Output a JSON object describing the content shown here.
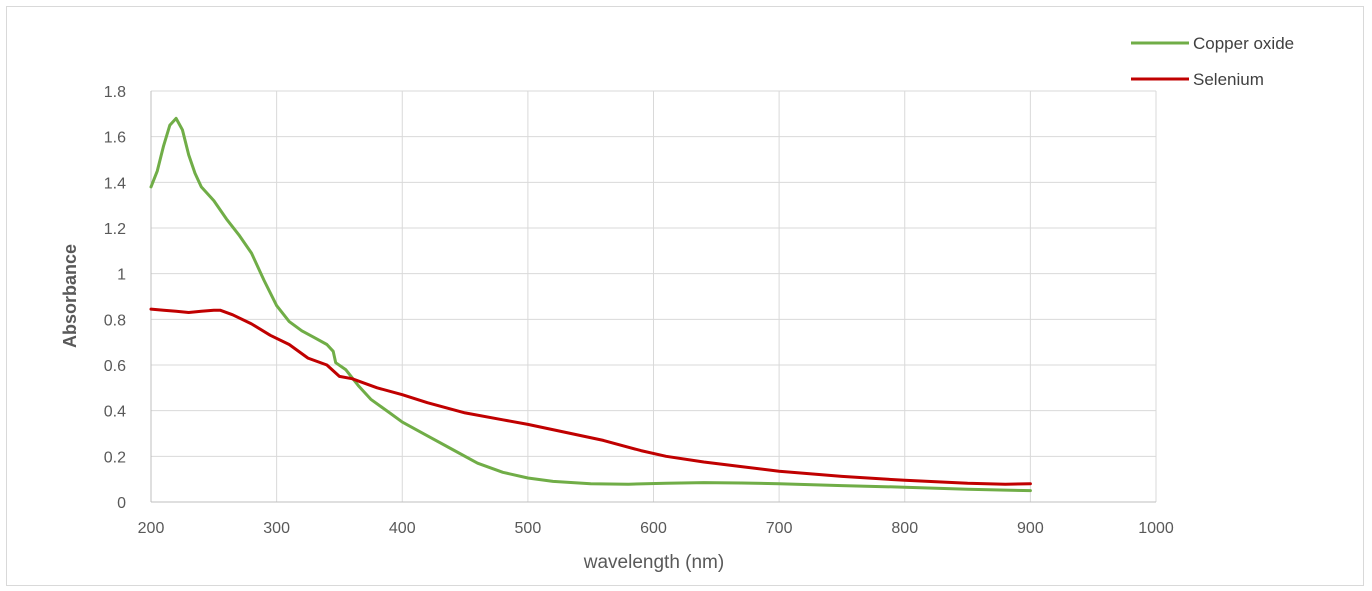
{
  "chart_data": {
    "type": "line",
    "title": "",
    "xlabel": "wavelength (nm)",
    "ylabel": "Absorbance",
    "xlim": [
      200,
      1000
    ],
    "ylim": [
      0,
      1.8
    ],
    "x_ticks": [
      "200",
      "300",
      "400",
      "500",
      "600",
      "700",
      "800",
      "900",
      "1000"
    ],
    "y_ticks": [
      "0",
      "0.2",
      "0.4",
      "0.6",
      "0.8",
      "1",
      "1.2",
      "1.4",
      "1.6",
      "1.8"
    ],
    "grid": true,
    "legend_position": "top-right",
    "series": [
      {
        "name": "Copper oxide",
        "color": "#70ad47",
        "points": [
          [
            200,
            1.38
          ],
          [
            205,
            1.45
          ],
          [
            210,
            1.56
          ],
          [
            215,
            1.65
          ],
          [
            220,
            1.68
          ],
          [
            225,
            1.63
          ],
          [
            230,
            1.52
          ],
          [
            235,
            1.44
          ],
          [
            240,
            1.38
          ],
          [
            250,
            1.32
          ],
          [
            260,
            1.24
          ],
          [
            270,
            1.17
          ],
          [
            280,
            1.09
          ],
          [
            290,
            0.97
          ],
          [
            300,
            0.86
          ],
          [
            310,
            0.79
          ],
          [
            320,
            0.75
          ],
          [
            330,
            0.72
          ],
          [
            340,
            0.69
          ],
          [
            345,
            0.66
          ],
          [
            347,
            0.61
          ],
          [
            355,
            0.58
          ],
          [
            365,
            0.51
          ],
          [
            375,
            0.45
          ],
          [
            390,
            0.39
          ],
          [
            400,
            0.35
          ],
          [
            420,
            0.29
          ],
          [
            440,
            0.23
          ],
          [
            460,
            0.17
          ],
          [
            480,
            0.13
          ],
          [
            500,
            0.105
          ],
          [
            520,
            0.09
          ],
          [
            550,
            0.08
          ],
          [
            580,
            0.078
          ],
          [
            610,
            0.082
          ],
          [
            640,
            0.085
          ],
          [
            670,
            0.083
          ],
          [
            700,
            0.08
          ],
          [
            750,
            0.072
          ],
          [
            800,
            0.065
          ],
          [
            850,
            0.056
          ],
          [
            880,
            0.052
          ],
          [
            900,
            0.05
          ]
        ]
      },
      {
        "name": "Selenium",
        "color": "#c00000",
        "points": [
          [
            200,
            0.845
          ],
          [
            210,
            0.84
          ],
          [
            220,
            0.835
          ],
          [
            230,
            0.83
          ],
          [
            240,
            0.835
          ],
          [
            250,
            0.84
          ],
          [
            255,
            0.84
          ],
          [
            265,
            0.82
          ],
          [
            280,
            0.78
          ],
          [
            295,
            0.73
          ],
          [
            310,
            0.69
          ],
          [
            325,
            0.63
          ],
          [
            340,
            0.6
          ],
          [
            350,
            0.55
          ],
          [
            360,
            0.54
          ],
          [
            380,
            0.5
          ],
          [
            400,
            0.47
          ],
          [
            420,
            0.435
          ],
          [
            450,
            0.39
          ],
          [
            480,
            0.36
          ],
          [
            500,
            0.34
          ],
          [
            530,
            0.305
          ],
          [
            560,
            0.27
          ],
          [
            590,
            0.225
          ],
          [
            610,
            0.2
          ],
          [
            640,
            0.175
          ],
          [
            670,
            0.155
          ],
          [
            700,
            0.135
          ],
          [
            750,
            0.112
          ],
          [
            800,
            0.095
          ],
          [
            850,
            0.082
          ],
          [
            880,
            0.078
          ],
          [
            900,
            0.08
          ]
        ]
      }
    ]
  }
}
